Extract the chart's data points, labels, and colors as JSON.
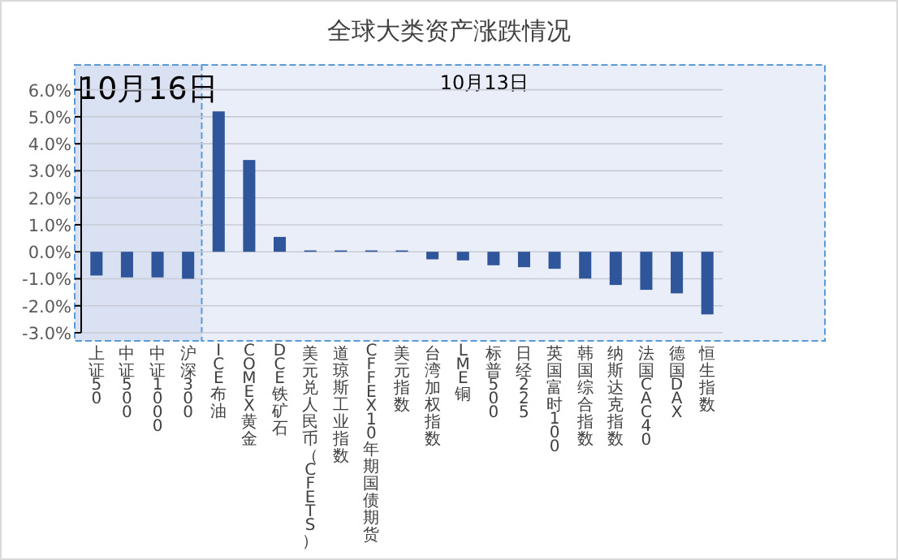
{
  "chart_data": {
    "type": "bar",
    "title": "全球大类资产涨跌情况",
    "categories": [
      "上证50",
      "中证500",
      "中证1000",
      "沪深300",
      "ICE布油",
      "COMEX黄金",
      "DCE铁矿石",
      "美元兑人民币（CFETS）",
      "道琼斯工业指数",
      "CFFEX10年期国债期货",
      "美元指数",
      "台湾加权指数",
      "LME铜",
      "标普500",
      "日经225",
      "英国富时100",
      "韩国综合指数",
      "纳斯达克指数",
      "法国CAC40",
      "德国DAX",
      "恒生指数"
    ],
    "values": [
      -0.88,
      -0.95,
      -0.95,
      -1.0,
      5.2,
      3.4,
      0.55,
      0.05,
      0.05,
      0.05,
      0.05,
      -0.28,
      -0.32,
      -0.5,
      -0.57,
      -0.63,
      -0.99,
      -1.23,
      -1.41,
      -1.54,
      -2.32
    ],
    "color": "#2f559a",
    "ylim": [
      -3,
      6.5
    ],
    "yticks": [
      {
        "value": -3,
        "label": "-3.0%"
      },
      {
        "value": -2,
        "label": "-2.0%"
      },
      {
        "value": -1,
        "label": "-1.0%"
      },
      {
        "value": 0,
        "label": "0.0%"
      },
      {
        "value": 1,
        "label": "1.0%"
      },
      {
        "value": 2,
        "label": "2.0%"
      },
      {
        "value": 3,
        "label": "3.0%"
      },
      {
        "value": 4,
        "label": "4.0%"
      },
      {
        "value": 5,
        "label": "5.0%"
      },
      {
        "value": 6,
        "label": "6.0%"
      }
    ],
    "grid": "y",
    "bands": [
      {
        "axis": "x",
        "from": "上证50",
        "to": "沪深300",
        "label": "10月16日",
        "color": "#d9e1f2"
      },
      {
        "axis": "x",
        "from": "ICE布油",
        "to": "恒生指数",
        "label": "10月13日",
        "color": "#e9eef8"
      }
    ]
  }
}
